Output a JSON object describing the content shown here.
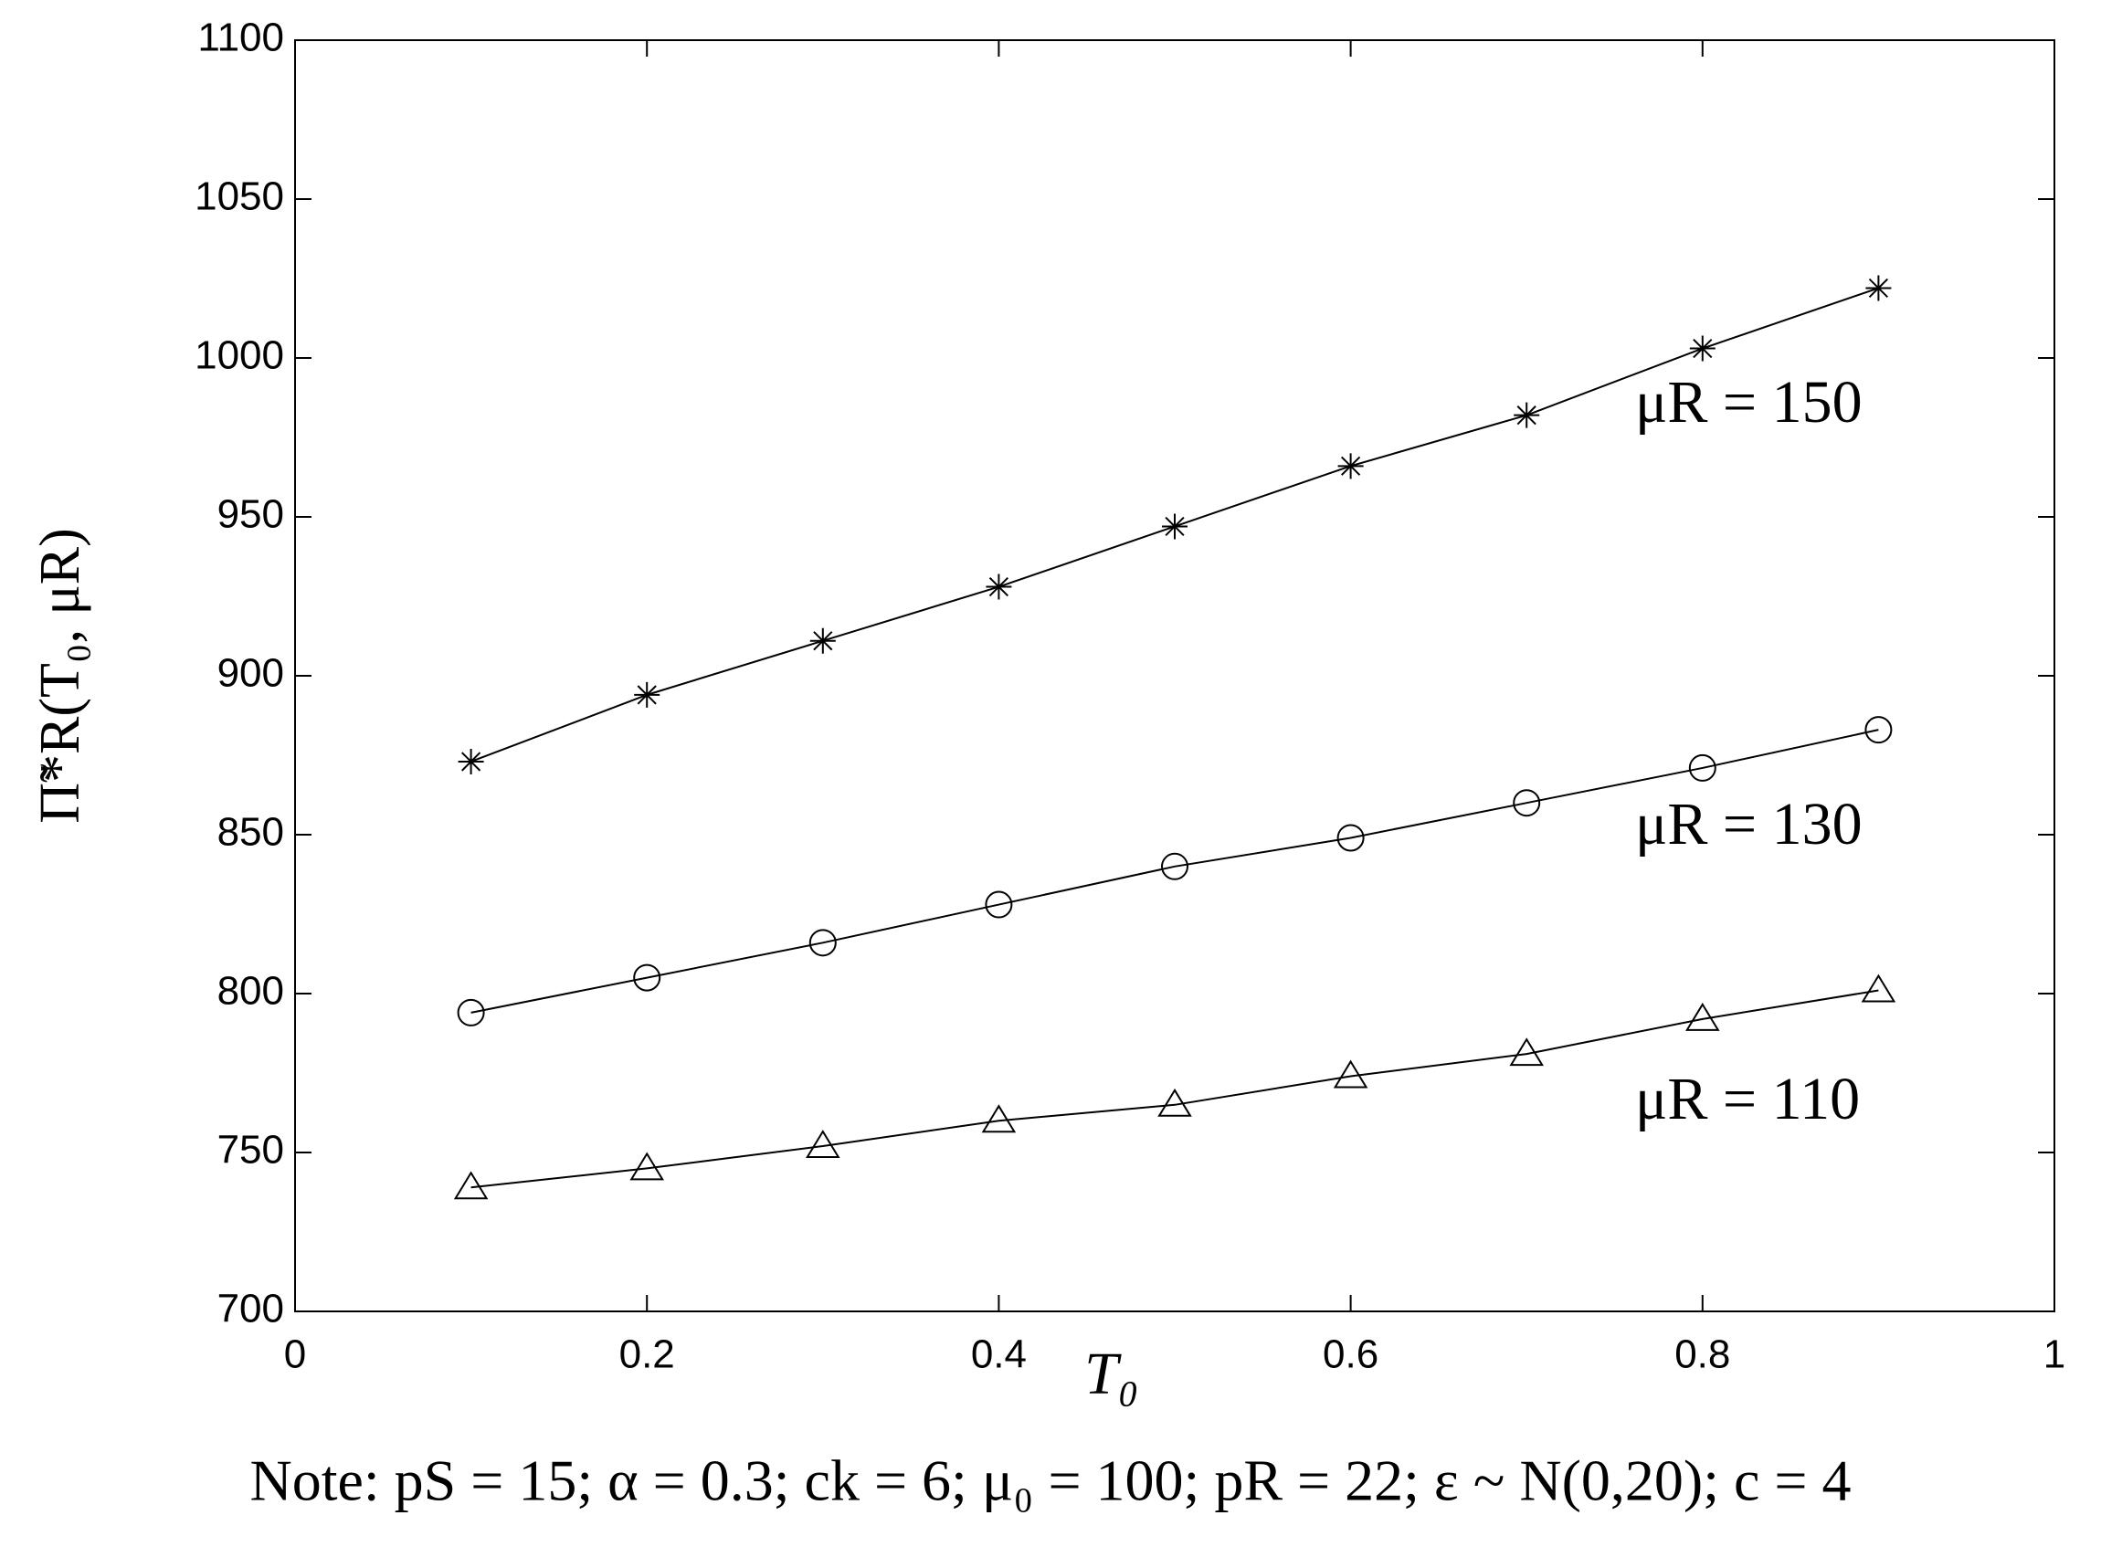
{
  "chart_data": {
    "type": "line",
    "x_label": "T₀",
    "y_label": "Π̃*R(T₀, μR)",
    "note": "Note:   pS = 15; α = 0.3; ck = 6; μ₀ = 100; pR = 22; ε ~ N(0,20); c = 4",
    "x": [
      0.1,
      0.2,
      0.3,
      0.4,
      0.5,
      0.6,
      0.7,
      0.8,
      0.9
    ],
    "series": [
      {
        "name": "μR = 150",
        "marker": "star",
        "color": "#000000",
        "values": [
          873,
          894,
          911,
          928,
          947,
          966,
          982,
          1003,
          1022
        ]
      },
      {
        "name": "μR = 130",
        "marker": "circle",
        "color": "#000000",
        "values": [
          794,
          805,
          816,
          828,
          840,
          849,
          860,
          871,
          883
        ]
      },
      {
        "name": "μR = 110",
        "marker": "triangle",
        "color": "#000000",
        "values": [
          739,
          745,
          752,
          760,
          765,
          774,
          781,
          792,
          801
        ]
      }
    ],
    "xlim": [
      0,
      1
    ],
    "xticks": [
      0,
      0.2,
      0.4,
      0.6,
      0.8,
      1
    ],
    "ylim": [
      700,
      1100
    ],
    "yticks": [
      700,
      750,
      800,
      850,
      900,
      950,
      1000,
      1050,
      1100
    ],
    "grid": false
  }
}
